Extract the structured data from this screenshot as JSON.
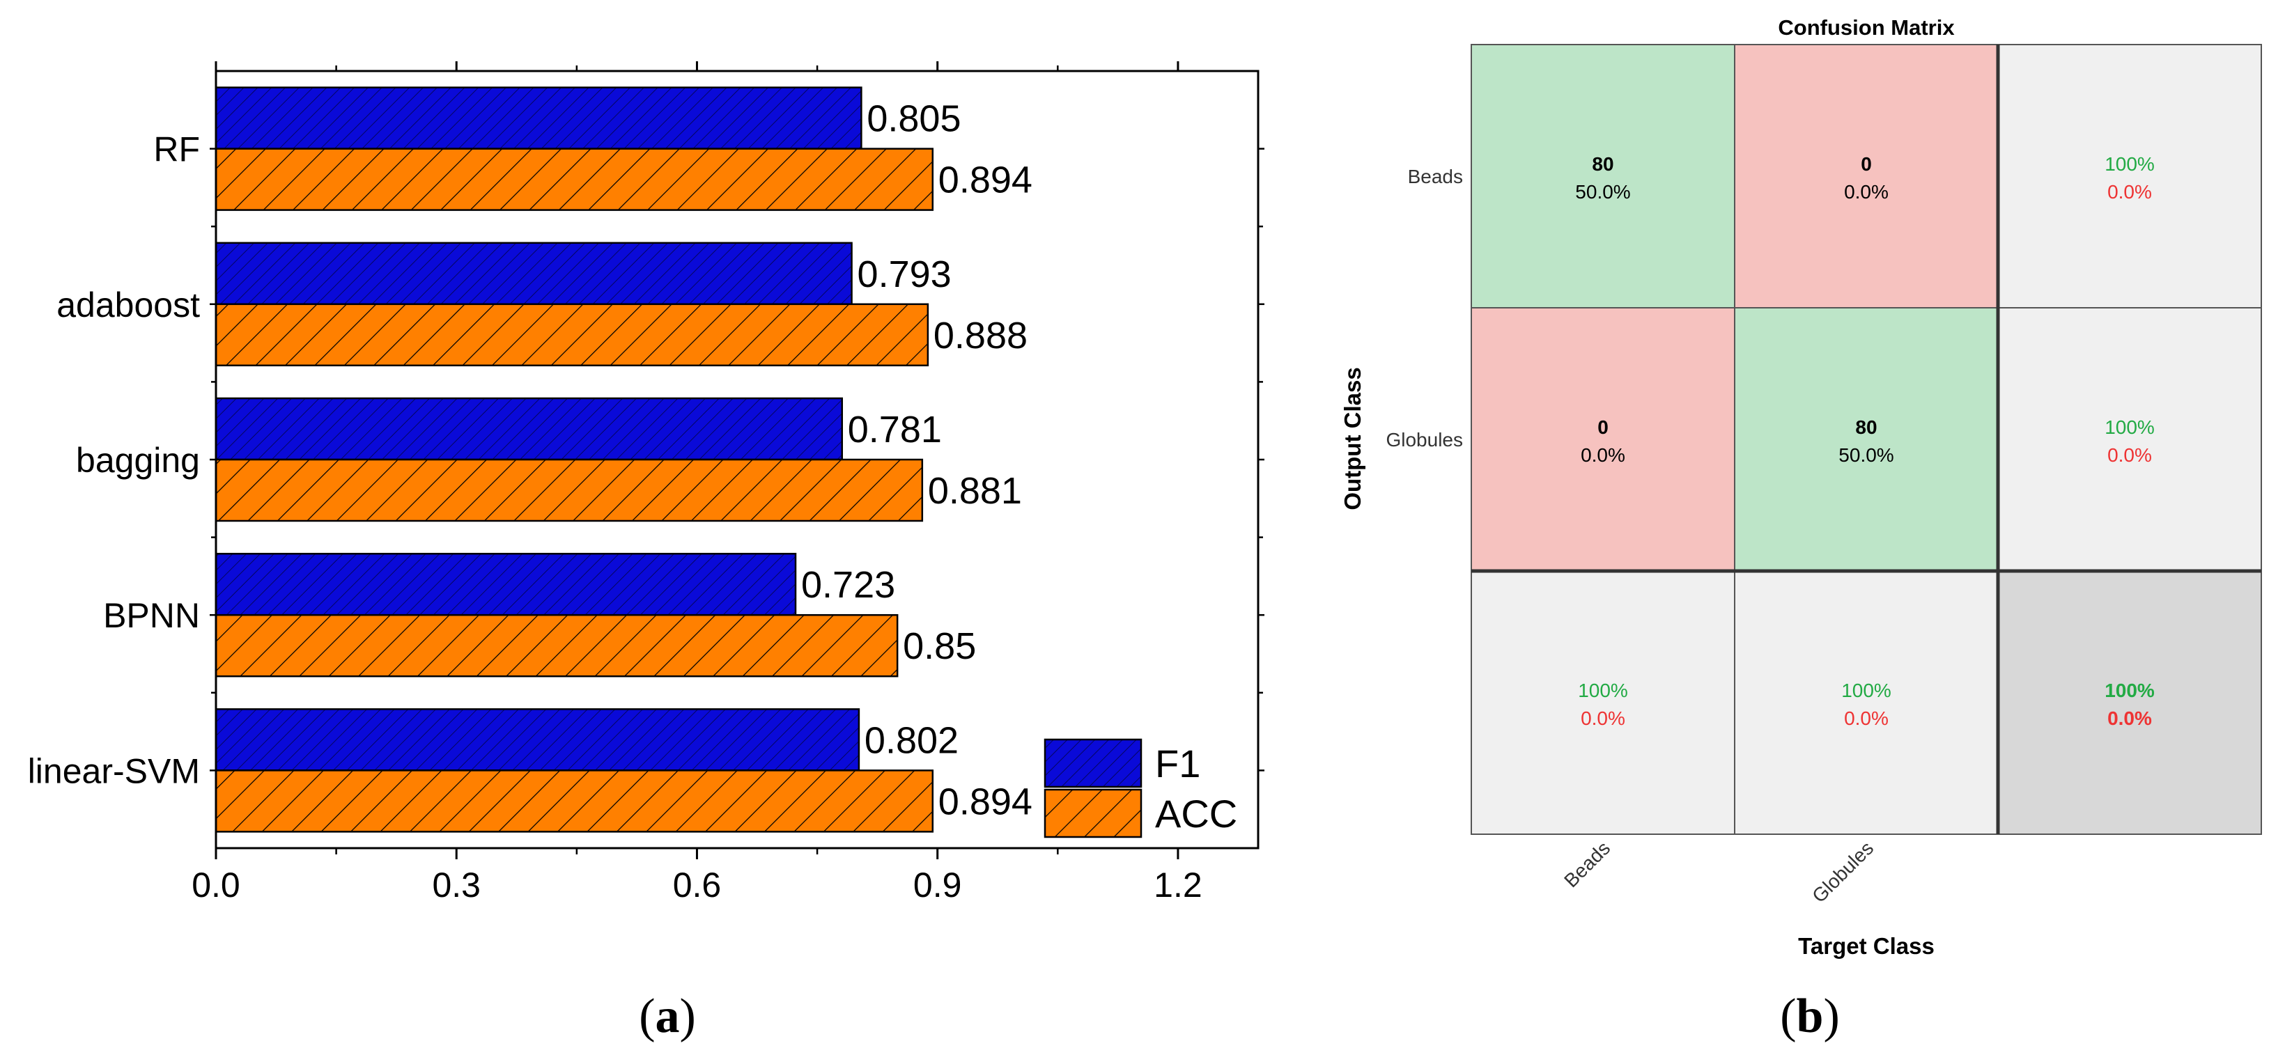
{
  "chart_data": [
    {
      "type": "bar",
      "orientation": "horizontal",
      "panel_label": "a",
      "categories": [
        "RF",
        "adaboost",
        "bagging",
        "BPNN",
        "linear-SVM"
      ],
      "series": [
        {
          "name": "F1",
          "color": "#0a0ad8",
          "values": [
            0.805,
            0.793,
            0.781,
            0.723,
            0.802
          ]
        },
        {
          "name": "ACC",
          "color": "#ff8000",
          "values": [
            0.894,
            0.888,
            0.881,
            0.85,
            0.894
          ]
        }
      ],
      "data_labels": {
        "F1": [
          "0.805",
          "0.793",
          "0.781",
          "0.723",
          "0.802"
        ],
        "ACC": [
          "0.894",
          "0.888",
          "0.881",
          "0.85",
          "0.894"
        ]
      },
      "xlim": [
        0.0,
        1.3
      ],
      "xticks": [
        "0.0",
        "0.3",
        "0.6",
        "0.9",
        "1.2"
      ],
      "xlabel": "",
      "ylabel": "",
      "legend": {
        "position": "bottom-right",
        "entries": [
          "F1",
          "ACC"
        ]
      }
    },
    {
      "type": "heatmap",
      "panel_label": "b",
      "title": "Confusion Matrix",
      "xlabel": "Target Class",
      "ylabel": "Output Class",
      "row_labels": [
        "Beads",
        "Globules"
      ],
      "col_labels": [
        "Beads",
        "Globules"
      ],
      "counts": [
        [
          80,
          0
        ],
        [
          0,
          80
        ]
      ],
      "count_labels": [
        [
          "80",
          "0"
        ],
        [
          "0",
          "80"
        ]
      ],
      "percent_labels": [
        [
          "50.0%",
          "0.0%"
        ],
        [
          "0.0%",
          "50.0%"
        ]
      ],
      "row_summary": [
        [
          "100%",
          "0.0%"
        ],
        [
          "100%",
          "0.0%"
        ]
      ],
      "col_summary": [
        [
          "100%",
          "0.0%"
        ],
        [
          "100%",
          "0.0%"
        ]
      ],
      "overall": [
        "100%",
        "0.0%"
      ],
      "colors": {
        "correct": "#bde5c8",
        "incorrect": "#f6c2bf",
        "summary": "#f0f0f0",
        "overall": "#d8d8d8",
        "good_text": "#22aa44",
        "bad_text": "#ee3333"
      }
    }
  ]
}
